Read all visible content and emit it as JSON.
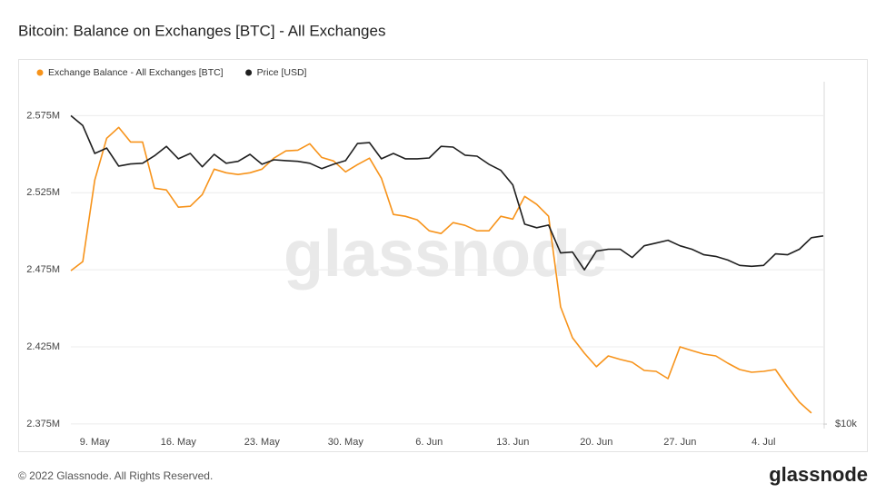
{
  "chart_data": {
    "type": "line",
    "title": "Bitcoin: Balance on Exchanges [BTC] - All Exchanges",
    "watermark": "glassnode",
    "footer": "© 2022 Glassnode. All Rights Reserved.",
    "logo": "glassnode",
    "categories": [
      null,
      null,
      "9. May",
      null,
      null,
      null,
      null,
      null,
      null,
      "16. May",
      null,
      null,
      null,
      null,
      null,
      null,
      "23. May",
      null,
      null,
      null,
      null,
      null,
      null,
      "30. May",
      null,
      null,
      null,
      null,
      null,
      null,
      "6. Jun",
      null,
      null,
      null,
      null,
      null,
      null,
      "13. Jun",
      null,
      null,
      null,
      null,
      null,
      null,
      "20. Jun",
      null,
      null,
      null,
      null,
      null,
      null,
      "27. Jun",
      null,
      null,
      null,
      null,
      null,
      null,
      "4. Jul",
      null,
      null,
      null,
      null,
      null
    ],
    "series": [
      {
        "name": "Exchange Balance - All Exchanges [BTC]",
        "color": "#f7931a",
        "values": [
          2474400,
          2480300,
          2533200,
          2560300,
          2567400,
          2557900,
          2557900,
          2527900,
          2526800,
          2515600,
          2516200,
          2523800,
          2540300,
          2537900,
          2536800,
          2537900,
          2540300,
          2547400,
          2552100,
          2552600,
          2556800,
          2547900,
          2545600,
          2538500,
          2543200,
          2547400,
          2534400,
          2510900,
          2509700,
          2507400,
          2500300,
          2498500,
          2505600,
          2503800,
          2500300,
          2500300,
          2509700,
          2507900,
          2522600,
          2517400,
          2509700,
          2450900,
          2430900,
          2420900,
          2412100,
          2419100,
          2416800,
          2415000,
          2409700,
          2409100,
          2404400,
          2425000,
          2422600,
          2420300,
          2419100,
          2414400,
          2410300,
          2408500,
          2409100,
          2410300,
          2399100,
          2389100,
          2382100,
          null
        ]
      },
      {
        "name": "Price [USD]",
        "color": "#1f1f1f",
        "axis": "y2",
        "values": [
          33960,
          32660,
          29240,
          29870,
          27810,
          28050,
          28130,
          28970,
          30070,
          28630,
          29240,
          27730,
          29140,
          28130,
          28340,
          29140,
          28020,
          28510,
          28420,
          28340,
          28130,
          27540,
          28020,
          28420,
          30410,
          30520,
          28630,
          29240,
          28630,
          28630,
          28720,
          30070,
          29990,
          29040,
          28930,
          28020,
          27350,
          25820,
          22090,
          21780,
          22010,
          19710,
          19780,
          18430,
          19850,
          20000,
          20000,
          19360,
          20280,
          20500,
          20730,
          20280,
          20000,
          19570,
          19440,
          19160,
          18760,
          18690,
          18760,
          19640,
          19570,
          20000,
          20940,
          21090
        ]
      }
    ],
    "ylim": [
      2372000,
      2597000
    ],
    "yticks": [
      {
        "value": 2375000,
        "label": "2.375M"
      },
      {
        "value": 2425000,
        "label": "2.425M"
      },
      {
        "value": 2475000,
        "label": "2.475M"
      },
      {
        "value": 2525000,
        "label": "2.525M"
      },
      {
        "value": 2575000,
        "label": "2.575M"
      }
    ],
    "y2lim": [
      9824,
      38860
    ],
    "y2ticks": [
      {
        "value": 10000,
        "label": "$10k"
      }
    ],
    "y2log": true,
    "grid": true,
    "legend": "top-left"
  }
}
